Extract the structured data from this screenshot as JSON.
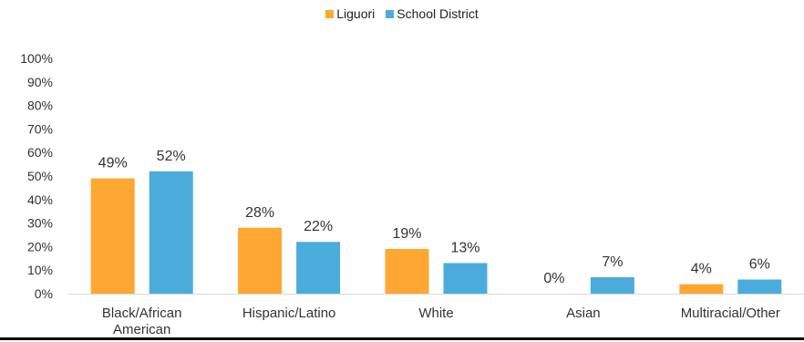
{
  "chart_data": {
    "type": "bar",
    "categories": [
      "Black/African American",
      "Hispanic/Latino",
      "White",
      "Asian",
      "Multiracial/Other"
    ],
    "series": [
      {
        "name": "Liguori",
        "values": [
          49,
          28,
          19,
          0,
          4
        ],
        "color": "#FFA733"
      },
      {
        "name": "School District",
        "values": [
          52,
          22,
          13,
          7,
          6
        ],
        "color": "#4BACDC"
      }
    ],
    "data_labels": [
      [
        "49%",
        "28%",
        "19%",
        "0%",
        "4%"
      ],
      [
        "52%",
        "22%",
        "13%",
        "7%",
        "6%"
      ]
    ],
    "yticks": [
      "0%",
      "10%",
      "20%",
      "30%",
      "40%",
      "50%",
      "60%",
      "70%",
      "80%",
      "90%",
      "100%"
    ],
    "ylim": [
      0,
      100
    ],
    "legend_position": "top-center",
    "grid": false
  }
}
